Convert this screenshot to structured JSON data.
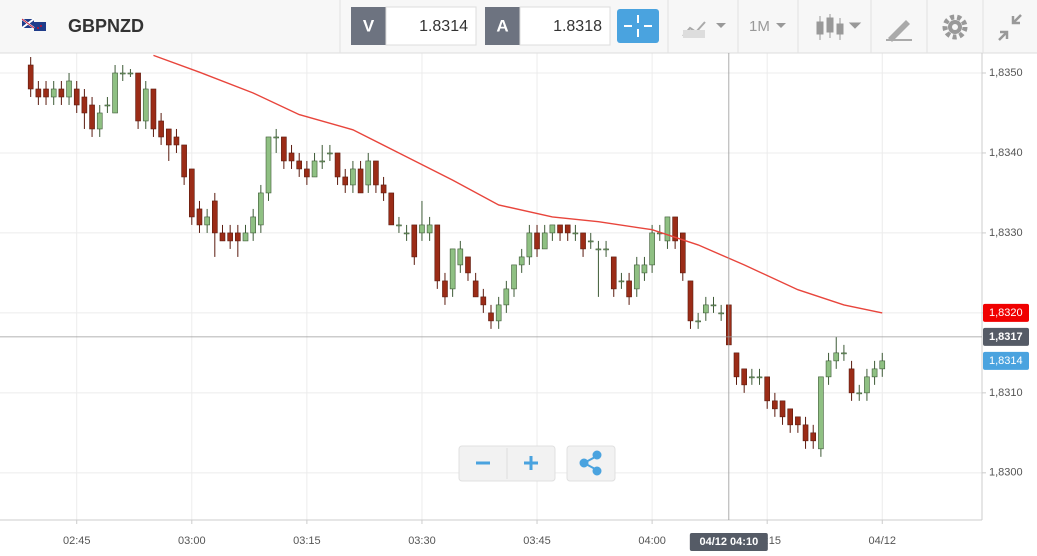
{
  "toolbar": {
    "symbol": "GBPNZD",
    "bid_label": "V",
    "bid": 1.8314,
    "ask_label": "A",
    "ask": 1.8318,
    "timeframe": "1M"
  },
  "chart_data": {
    "type": "candlestick",
    "x": [
      "02:39",
      "02:40",
      "02:41",
      "02:42",
      "02:43",
      "02:44",
      "02:45",
      "02:46",
      "02:47",
      "02:48",
      "02:49",
      "02:50",
      "02:51",
      "02:52",
      "02:53",
      "02:54",
      "02:55",
      "02:56",
      "02:57",
      "02:58",
      "02:59",
      "03:00",
      "03:01",
      "03:02",
      "03:03",
      "03:04",
      "03:05",
      "03:06",
      "03:07",
      "03:08",
      "03:09",
      "03:10",
      "03:11",
      "03:12",
      "03:13",
      "03:14",
      "03:15",
      "03:16",
      "03:17",
      "03:18",
      "03:19",
      "03:20",
      "03:21",
      "03:22",
      "03:23",
      "03:24",
      "03:25",
      "03:26",
      "03:27",
      "03:28",
      "03:29",
      "03:30",
      "03:31",
      "03:32",
      "03:33",
      "03:34",
      "03:35",
      "03:36",
      "03:37",
      "03:38",
      "03:39",
      "03:40",
      "03:41",
      "03:42",
      "03:43",
      "03:44",
      "03:45",
      "03:46",
      "03:47",
      "03:48",
      "03:49",
      "03:50",
      "03:51",
      "03:52",
      "03:53",
      "03:54",
      "03:55",
      "03:56",
      "03:57",
      "03:58",
      "03:59",
      "04:00",
      "04:01",
      "04:02",
      "04:03",
      "04:04",
      "04:05",
      "04:06",
      "04:07",
      "04:08",
      "04:09",
      "04:10",
      "04:11",
      "04:12",
      "04:13",
      "04:14",
      "04:15",
      "04:16",
      "04:17",
      "04:18",
      "04:19",
      "04:20",
      "04:21",
      "04:22",
      "04:23",
      "04:24",
      "04:25",
      "04:26",
      "04:27",
      "04:28",
      "04:29",
      "04:30"
    ],
    "open": [
      1.8351,
      1.8348,
      1.8348,
      1.8347,
      1.8348,
      1.8347,
      1.8348,
      1.8347,
      1.8346,
      1.8343,
      1.8346,
      1.8345,
      1.835,
      1.835,
      1.835,
      1.8344,
      1.8348,
      1.8344,
      1.8343,
      1.8342,
      1.8341,
      1.8338,
      1.8333,
      1.8331,
      1.8334,
      1.833,
      1.833,
      1.833,
      1.8329,
      1.833,
      1.8331,
      1.8335,
      1.8342,
      1.8342,
      1.834,
      1.8339,
      1.8338,
      1.8337,
      1.8339,
      1.834,
      1.834,
      1.8337,
      1.8336,
      1.8338,
      1.8336,
      1.8339,
      1.8336,
      1.8335,
      1.8331,
      1.833,
      1.8331,
      1.833,
      1.833,
      1.8331,
      1.8324,
      1.8323,
      1.8326,
      1.8327,
      1.8324,
      1.8322,
      1.832,
      1.8319,
      1.8321,
      1.8323,
      1.8326,
      1.8327,
      1.833,
      1.8328,
      1.833,
      1.8331,
      1.8331,
      1.833,
      1.833,
      1.8329,
      1.8328,
      1.8328,
      1.8327,
      1.8324,
      1.8324,
      1.8323,
      1.8325,
      1.8326,
      1.833,
      1.8329,
      1.8332,
      1.833,
      1.8324,
      1.8319,
      1.832,
      1.8321,
      1.832,
      1.8321,
      1.8315,
      1.8313,
      1.8312,
      1.8312,
      1.8312,
      1.8309,
      1.8309,
      1.8308,
      1.8307,
      1.8306,
      1.8305,
      1.8303,
      1.8312,
      1.8314,
      1.8315,
      1.8313,
      1.831,
      1.831,
      1.8312,
      1.8313
    ],
    "high": [
      1.8352,
      1.8349,
      1.8349,
      1.8349,
      1.8349,
      1.835,
      1.8349,
      1.8348,
      1.8347,
      1.8346,
      1.8347,
      1.8351,
      1.8351,
      1.83505,
      1.835,
      1.8349,
      1.8348,
      1.8345,
      1.8343,
      1.8343,
      1.8341,
      1.8338,
      1.8334,
      1.8333,
      1.8335,
      1.8331,
      1.8331,
      1.8331,
      1.8331,
      1.8333,
      1.8336,
      1.8342,
      1.8343,
      1.8342,
      1.8341,
      1.834,
      1.8339,
      1.834,
      1.8341,
      1.8341,
      1.834,
      1.8338,
      1.8339,
      1.8339,
      1.834,
      1.8339,
      1.8337,
      1.8335,
      1.8332,
      1.8331,
      1.8331,
      1.8334,
      1.8332,
      1.8331,
      1.8325,
      1.8328,
      1.8329,
      1.8327,
      1.8325,
      1.8323,
      1.8321,
      1.8322,
      1.8324,
      1.8326,
      1.8328,
      1.8331,
      1.8331,
      1.8331,
      1.8331,
      1.8331,
      1.8331,
      1.8331,
      1.833,
      1.833,
      1.8329,
      1.8329,
      1.8327,
      1.8325,
      1.8325,
      1.8327,
      1.8327,
      1.8331,
      1.8331,
      1.8332,
      1.8332,
      1.833,
      1.8324,
      1.832,
      1.8322,
      1.8322,
      1.8321,
      1.8321,
      1.8315,
      1.8313,
      1.8313,
      1.8313,
      1.8312,
      1.831,
      1.8309,
      1.8308,
      1.8307,
      1.8307,
      1.8306,
      1.8312,
      1.8315,
      1.8317,
      1.8316,
      1.8314,
      1.8311,
      1.8313,
      1.8314,
      1.8315
    ],
    "low": [
      1.8347,
      1.8346,
      1.8346,
      1.8346,
      1.8346,
      1.8346,
      1.8345,
      1.8343,
      1.8342,
      1.8342,
      1.8345,
      1.8345,
      1.8349,
      1.83495,
      1.8343,
      1.8343,
      1.8342,
      1.8341,
      1.8339,
      1.834,
      1.8336,
      1.8331,
      1.833,
      1.833,
      1.8327,
      1.8329,
      1.8328,
      1.8327,
      1.8329,
      1.8329,
      1.833,
      1.8334,
      1.834,
      1.8338,
      1.8338,
      1.8337,
      1.8336,
      1.8337,
      1.8338,
      1.8339,
      1.8336,
      1.8335,
      1.8335,
      1.8335,
      1.8335,
      1.8335,
      1.8334,
      1.8331,
      1.833,
      1.8329,
      1.8326,
      1.8329,
      1.8329,
      1.8323,
      1.8321,
      1.8322,
      1.8325,
      1.8324,
      1.8322,
      1.832,
      1.8318,
      1.8318,
      1.832,
      1.8322,
      1.8325,
      1.8326,
      1.8327,
      1.8328,
      1.8329,
      1.8329,
      1.8329,
      1.8329,
      1.8327,
      1.8328,
      1.8322,
      1.8327,
      1.8322,
      1.8323,
      1.8321,
      1.8322,
      1.8324,
      1.8325,
      1.8329,
      1.8328,
      1.8328,
      1.8324,
      1.8318,
      1.8318,
      1.8319,
      1.832,
      1.8319,
      1.8316,
      1.8311,
      1.831,
      1.8311,
      1.8311,
      1.8308,
      1.8307,
      1.8306,
      1.8305,
      1.8305,
      1.8303,
      1.8303,
      1.8302,
      1.8311,
      1.8313,
      1.8314,
      1.8309,
      1.8309,
      1.8309,
      1.8311,
      1.8312
    ],
    "close": [
      1.8348,
      1.8347,
      1.8347,
      1.8348,
      1.8347,
      1.8349,
      1.8346,
      1.8345,
      1.8343,
      1.8345,
      1.8346,
      1.835,
      1.835,
      1.835,
      1.8344,
      1.8348,
      1.8343,
      1.8342,
      1.8341,
      1.8341,
      1.8337,
      1.8332,
      1.8331,
      1.8332,
      1.833,
      1.8329,
      1.8329,
      1.8329,
      1.833,
      1.8332,
      1.8335,
      1.8342,
      1.8342,
      1.8339,
      1.8339,
      1.8338,
      1.8337,
      1.8339,
      1.8339,
      1.834,
      1.8337,
      1.8336,
      1.8338,
      1.8335,
      1.8339,
      1.8336,
      1.8335,
      1.8331,
      1.8331,
      1.833,
      1.8327,
      1.8331,
      1.8331,
      1.8324,
      1.8322,
      1.8328,
      1.8328,
      1.8325,
      1.8322,
      1.8321,
      1.8319,
      1.8321,
      1.8323,
      1.8326,
      1.8327,
      1.833,
      1.8328,
      1.833,
      1.8331,
      1.833,
      1.833,
      1.833,
      1.8328,
      1.8329,
      1.8328,
      1.8328,
      1.8323,
      1.8324,
      1.8322,
      1.8326,
      1.8326,
      1.833,
      1.833,
      1.8332,
      1.8329,
      1.8325,
      1.8319,
      1.8319,
      1.8321,
      1.8321,
      1.832,
      1.8316,
      1.8312,
      1.8311,
      1.8312,
      1.8312,
      1.8309,
      1.8308,
      1.8307,
      1.8306,
      1.8306,
      1.8304,
      1.8304,
      1.8312,
      1.8314,
      1.8315,
      1.8315,
      1.831,
      1.831,
      1.8312,
      1.8313,
      1.8314
    ],
    "up_color": "#8fc083",
    "down_color": "#9b2c17",
    "overlay": {
      "color": "#e8453c",
      "x": [
        "02:55",
        "03:01",
        "03:08",
        "03:14",
        "03:21",
        "03:27",
        "03:34",
        "03:40",
        "03:47",
        "03:53",
        "04:00",
        "04:06",
        "04:12",
        "04:19",
        "04:25",
        "04:30"
      ],
      "values": [
        1.83522,
        1.83501,
        1.83475,
        1.83448,
        1.83429,
        1.834,
        1.83366,
        1.83335,
        1.8332,
        1.83314,
        1.83304,
        1.83285,
        1.8326,
        1.83229,
        1.8321,
        1.832
      ]
    },
    "xlim": [
      "02:35",
      "04:43"
    ],
    "xticks": [
      "02:45",
      "03:00",
      "03:15",
      "03:30",
      "03:45",
      "04:00",
      "04:15",
      {
        "value": "04:30",
        "label": "04/12"
      }
    ],
    "ylim": [
      1.82941,
      1.83525
    ],
    "yticks": [
      {
        "value": 1.835,
        "label": "1,8350"
      },
      {
        "value": 1.834,
        "label": "1,8340"
      },
      {
        "value": 1.833,
        "label": "1,8330"
      },
      {
        "value": 1.832,
        "label": "1,8320"
      },
      {
        "value": 1.831,
        "label": "1,8310"
      },
      {
        "value": 1.83,
        "label": "1,8300"
      }
    ],
    "grid": true,
    "price_tags": [
      {
        "value": 1.832,
        "label": "1,8320",
        "color": "#f00000"
      },
      {
        "value": 1.8314,
        "label": "1,8314",
        "color": "#4aa3df"
      }
    ],
    "crosshair": {
      "x": "04:10",
      "x_label": "04/12 04:10",
      "y": 1.8317,
      "y_label": "1,8317"
    }
  }
}
